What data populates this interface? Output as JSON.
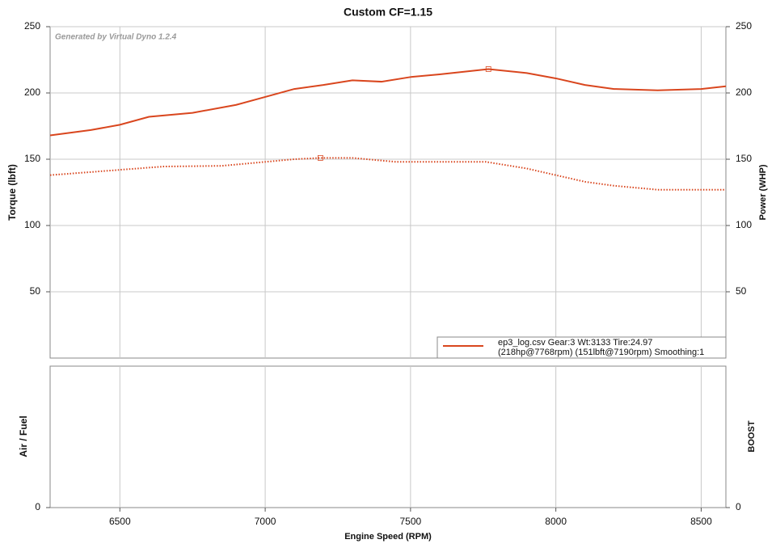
{
  "chart_data": {
    "type": "line",
    "title": "Custom CF=1.15",
    "watermark": "Generated by Virtual Dyno 1.2.4",
    "ylabel": "Torque (lbft)",
    "y2label": "Power (WHP)",
    "xlabel": "Engine Speed (RPM)",
    "xlim": [
      6260,
      8585
    ],
    "xticks": [
      6500,
      7000,
      7500,
      8000,
      8500
    ],
    "ylim": [
      0,
      250
    ],
    "yticks": [
      50,
      100,
      150,
      200,
      250
    ],
    "y2lim": [
      0,
      250
    ],
    "y2ticks": [
      50,
      100,
      150,
      200,
      250
    ],
    "grid": true,
    "series": [
      {
        "color": "#d9461e",
        "style": "solid",
        "axis": "y2",
        "x": [
          6260,
          6400,
          6500,
          6600,
          6750,
          6900,
          7000,
          7100,
          7200,
          7300,
          7400,
          7500,
          7600,
          7768,
          7900,
          8000,
          8100,
          8200,
          8350,
          8500,
          8585
        ],
        "values": [
          168,
          172,
          176,
          182,
          185,
          191,
          197,
          203,
          206,
          209.5,
          208.5,
          212,
          214,
          218,
          215,
          211,
          206,
          203,
          202,
          203,
          205
        ]
      },
      {
        "color": "#d9461e",
        "style": "dotted",
        "x": [
          6260,
          6500,
          6650,
          6850,
          7000,
          7100,
          7190,
          7300,
          7450,
          7600,
          7760,
          7900,
          8000,
          8100,
          8200,
          8350,
          8585
        ],
        "values": [
          138,
          142,
          144.5,
          145,
          148,
          150,
          151,
          151,
          148,
          148,
          148,
          143,
          138,
          133,
          130,
          127,
          127
        ]
      }
    ],
    "legend": {
      "color": "#d9461e",
      "lines": [
        "ep3_log.csv Gear:3 Wt:3133 Tire:24.97",
        "(218hp@7768rpm) (151lbft@7190rpm) Smoothing:1"
      ]
    },
    "lower_panel": {
      "ylabel": "Air / Fuel",
      "y2label": "BOOST",
      "yticks": [
        0
      ],
      "y2ticks": [
        0
      ]
    }
  }
}
